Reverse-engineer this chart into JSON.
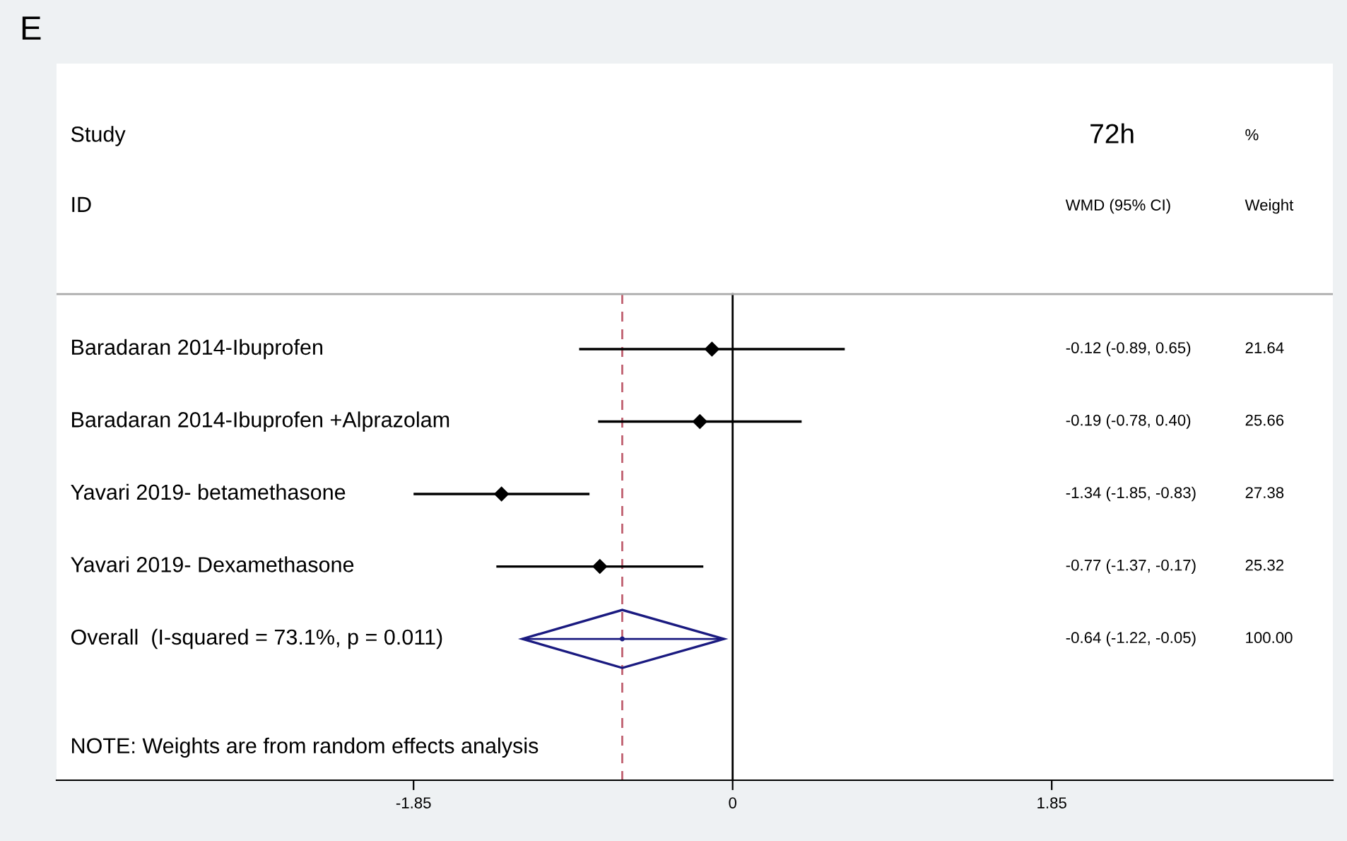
{
  "chart_data": {
    "type": "scatter",
    "orientation": "horizontal",
    "title": "E",
    "categories": [
      "Baradaran 2014-Ibuprofen",
      "Baradaran 2014-Ibuprofen +Alprazolam",
      "Yavari 2019- betamethasone",
      "Yavari 2019- Dexamethasone",
      "Overall  (I-squared = 73.1%, p = 0.011)"
    ],
    "series": [
      {
        "color": "#000000",
        "marker": "diamond",
        "values": [
          -0.12,
          -0.19,
          -1.34,
          -0.77,
          null
        ],
        "errors": [
          [
            -0.89,
            0.65
          ],
          [
            -0.78,
            0.4
          ],
          [
            -1.85,
            -0.83
          ],
          [
            -1.37,
            -0.17
          ],
          null
        ]
      },
      {
        "color": "#1a1a80",
        "marker": "none",
        "values": [
          null,
          null,
          null,
          null,
          -0.64
        ],
        "errors": [
          null,
          null,
          null,
          null,
          [
            -1.22,
            -0.05
          ]
        ]
      }
    ],
    "xlim": [
      -3.92,
      3.48
    ],
    "xticks": [
      -1.85,
      0,
      1.85
    ],
    "tick_labels": "x",
    "ref_lines": [
      {
        "axis": "x",
        "value": 0,
        "color": "#000000",
        "line_style": "solid"
      },
      {
        "axis": "x",
        "value": -0.64,
        "color": "#c06070",
        "line_style": "dashed"
      }
    ],
    "annotations": [
      "Study",
      "ID",
      "72h",
      "WMD (95% CI)",
      "%",
      "Weight",
      "-0.12 (-0.89, 0.65)",
      "-0.19 (-0.78, 0.40)",
      "-1.34 (-1.85, -0.83)",
      "-0.77 (-1.37, -0.17)",
      "-0.64 (-1.22, -0.05)",
      "21.64",
      "25.66",
      "27.38",
      "25.32",
      "100.00",
      "NOTE: Weights are from random effects analysis"
    ],
    "grid": false
  }
}
